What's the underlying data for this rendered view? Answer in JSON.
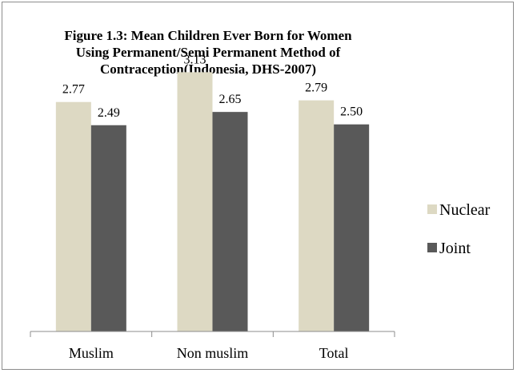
{
  "chart_data": {
    "type": "bar",
    "title_lines": [
      "Figure 1.3: Mean Children Ever Born for Women",
      "Using Permanent/Semi Permanent Method of",
      "Contraception(Indonesia, DHS-2007)"
    ],
    "categories": [
      "Muslim",
      "Non muslim",
      "Total"
    ],
    "series": [
      {
        "name": "Nuclear",
        "values": [
          2.77,
          3.13,
          2.79
        ],
        "labels": [
          "2.77",
          "3.13",
          "2.79"
        ],
        "color": "#ddd9c3"
      },
      {
        "name": "Joint",
        "values": [
          2.49,
          2.65,
          2.5
        ],
        "labels": [
          "2.49",
          "2.65",
          "2.50"
        ],
        "color": "#595959"
      }
    ],
    "ylim": [
      0,
      3.5
    ],
    "grid": false,
    "legend_position": "right"
  }
}
